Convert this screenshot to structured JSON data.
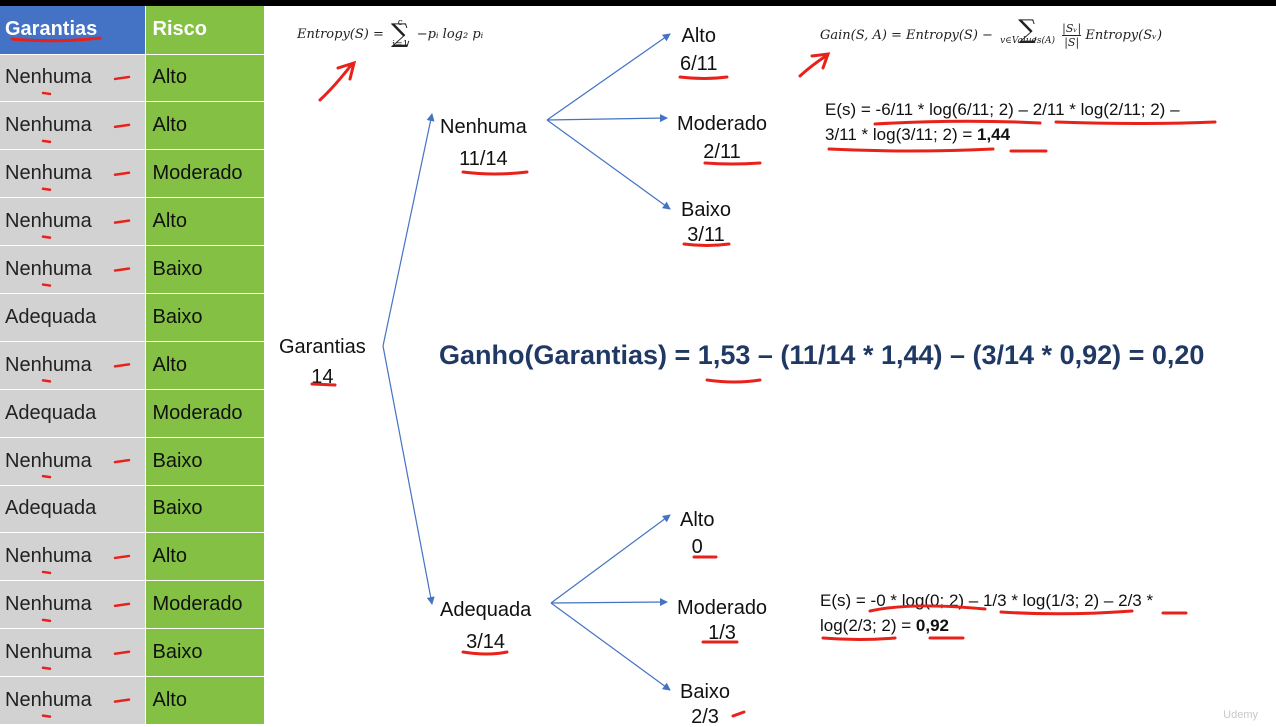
{
  "table": {
    "headers": [
      "Garantias",
      "Risco"
    ],
    "rows": [
      [
        "Nenhuma",
        "Alto"
      ],
      [
        "Nenhuma",
        "Alto"
      ],
      [
        "Nenhuma",
        "Moderado"
      ],
      [
        "Nenhuma",
        "Alto"
      ],
      [
        "Nenhuma",
        "Baixo"
      ],
      [
        "Adequada",
        "Baixo"
      ],
      [
        "Nenhuma",
        "Alto"
      ],
      [
        "Adequada",
        "Moderado"
      ],
      [
        "Nenhuma",
        "Baixo"
      ],
      [
        "Adequada",
        "Baixo"
      ],
      [
        "Nenhuma",
        "Alto"
      ],
      [
        "Nenhuma",
        "Moderado"
      ],
      [
        "Nenhuma",
        "Baixo"
      ],
      [
        "Nenhuma",
        "Alto"
      ]
    ]
  },
  "tree": {
    "root": {
      "label": "Garantias",
      "count": "14"
    },
    "nenhuma": {
      "label": "Nenhuma",
      "ratio": "11/14"
    },
    "adequada": {
      "label": "Adequada",
      "ratio": "3/14"
    },
    "n_alto": {
      "label": "Alto",
      "ratio": "6/11"
    },
    "n_moderado": {
      "label": "Moderado",
      "ratio": "2/11"
    },
    "n_baixo": {
      "label": "Baixo",
      "ratio": "3/11"
    },
    "a_alto": {
      "label": "Alto",
      "ratio": "0"
    },
    "a_moderado": {
      "label": "Moderado",
      "ratio": "1/3"
    },
    "a_baixo": {
      "label": "Baixo",
      "ratio": "2/3"
    }
  },
  "formulas": {
    "entropy_lhs": "Entropy(S) =",
    "entropy_top": "c",
    "entropy_bottom": "i=1",
    "entropy_rhs": "−pᵢ log₂ pᵢ",
    "gain_lhs": "Gain(S, A) = Entropy(S) −",
    "gain_bottom": "v∈Values(A)",
    "gain_num": "|Sᵥ|",
    "gain_den": "|S|",
    "gain_rhs": "Entropy(Sᵥ)"
  },
  "calc_nenhuma": {
    "line1": "E(s) = -6/11 * log(6/11; 2) – 2/11 * log(2/11; 2) –",
    "line2_prefix": "3/11 * log(3/11; 2) = ",
    "result": "1,44"
  },
  "calc_adequada": {
    "line1": "E(s) = -0 * log(0; 2) – 1/3 * log(1/3; 2) – 2/3 *",
    "line2_prefix": "log(2/3; 2) = ",
    "result": "0,92"
  },
  "gain_equation": "Ganho(Garantias) = 1,53 – (11/14 * 1,44) – (3/14 * 0,92) = 0,20",
  "watermark": "Udemy",
  "colors": {
    "header_blue": "#4472c4",
    "cell_gray": "#d2d2d2",
    "cell_green": "#83c043",
    "arrow_blue": "#4472c4",
    "annotation_red": "#e8211b",
    "gain_navy": "#1f3864"
  }
}
